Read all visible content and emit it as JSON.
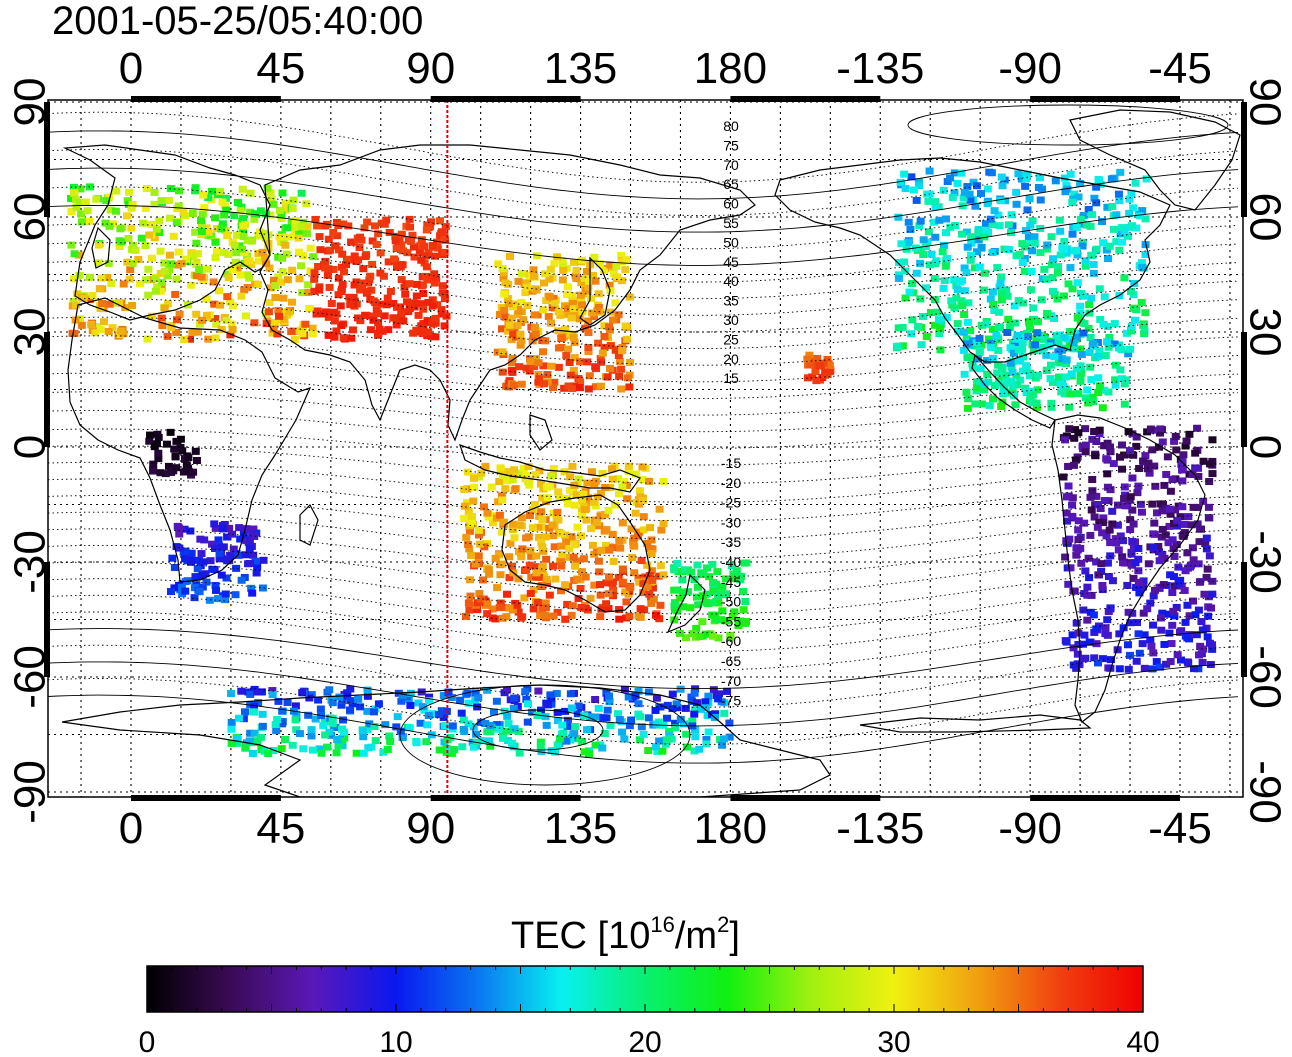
{
  "timestamp": "2001-05-25/05:40:00",
  "lon_ticks": [
    "0",
    "45",
    "90",
    "135",
    "180",
    "-135",
    "-90",
    "-45"
  ],
  "lat_ticks_left": [
    "90",
    "60",
    "30",
    "0",
    "-30",
    "-60",
    "-90"
  ],
  "lat_ticks_right": [
    "90",
    "60",
    "30",
    "0",
    "-30",
    "-60",
    "-90"
  ],
  "contour_labels_north": [
    "80",
    "75",
    "70",
    "65",
    "60",
    "55",
    "50",
    "45",
    "40",
    "35",
    "30",
    "25",
    "20",
    "15"
  ],
  "contour_labels_south": [
    "-15",
    "-20",
    "-25",
    "-30",
    "-35",
    "-40",
    "-45",
    "-50",
    "-55",
    "-60",
    "-65",
    "-70",
    "-75"
  ],
  "colorbar": {
    "title_main": "TEC  [10",
    "title_sup1": "16",
    "title_mid": "/m",
    "title_sup2": "2",
    "title_end": "]",
    "tick_labels": [
      "0",
      "10",
      "20",
      "30",
      "40"
    ],
    "range": [
      0,
      40
    ],
    "colormap": [
      "#000000",
      "#3a0a55",
      "#5a18b8",
      "#0a18f0",
      "#0a78f0",
      "#08f0f0",
      "#08f070",
      "#10f010",
      "#a0f010",
      "#f0f010",
      "#f0a010",
      "#f04010",
      "#f00000"
    ]
  },
  "terminator_line": {
    "longitude": 95,
    "color": "#e00000"
  },
  "tec_regions": [
    {
      "name": "europe",
      "lon": [
        -18,
        55
      ],
      "lat": [
        28,
        68
      ],
      "tec": [
        20,
        39
      ]
    },
    {
      "name": "central-asia",
      "lon": [
        55,
        95
      ],
      "lat": [
        28,
        60
      ],
      "tec": [
        36,
        39
      ]
    },
    {
      "name": "east-asia",
      "lon": [
        110,
        150
      ],
      "lat": [
        15,
        50
      ],
      "tec": [
        28,
        39
      ]
    },
    {
      "name": "indonesia-australia",
      "lon": [
        100,
        160
      ],
      "lat": [
        -45,
        -5
      ],
      "tec": [
        28,
        39
      ]
    },
    {
      "name": "new-zealand",
      "lon": [
        162,
        185
      ],
      "lat": [
        -50,
        -30
      ],
      "tec": [
        18,
        26
      ]
    },
    {
      "name": "hawaii",
      "lon": [
        -158,
        -150
      ],
      "lat": [
        17,
        24
      ],
      "tec": [
        34,
        39
      ]
    },
    {
      "name": "north-america",
      "lon": [
        -130,
        -55
      ],
      "lat": [
        25,
        72
      ],
      "tec": [
        11,
        24
      ]
    },
    {
      "name": "central-america",
      "lon": [
        -110,
        -60
      ],
      "lat": [
        10,
        30
      ],
      "tec": [
        12,
        24
      ]
    },
    {
      "name": "south-america",
      "lon": [
        -80,
        -35
      ],
      "lat": [
        -58,
        5
      ],
      "tec": [
        1,
        12
      ]
    },
    {
      "name": "southern-africa",
      "lon": [
        12,
        40
      ],
      "lat": [
        -40,
        -20
      ],
      "tec": [
        6,
        14
      ]
    },
    {
      "name": "central-africa",
      "lon": [
        5,
        20
      ],
      "lat": [
        -8,
        5
      ],
      "tec": [
        0,
        3
      ]
    },
    {
      "name": "antarctica-coast",
      "lon": [
        30,
        180
      ],
      "lat": [
        -80,
        -63
      ],
      "tec": [
        6,
        24
      ]
    }
  ]
}
